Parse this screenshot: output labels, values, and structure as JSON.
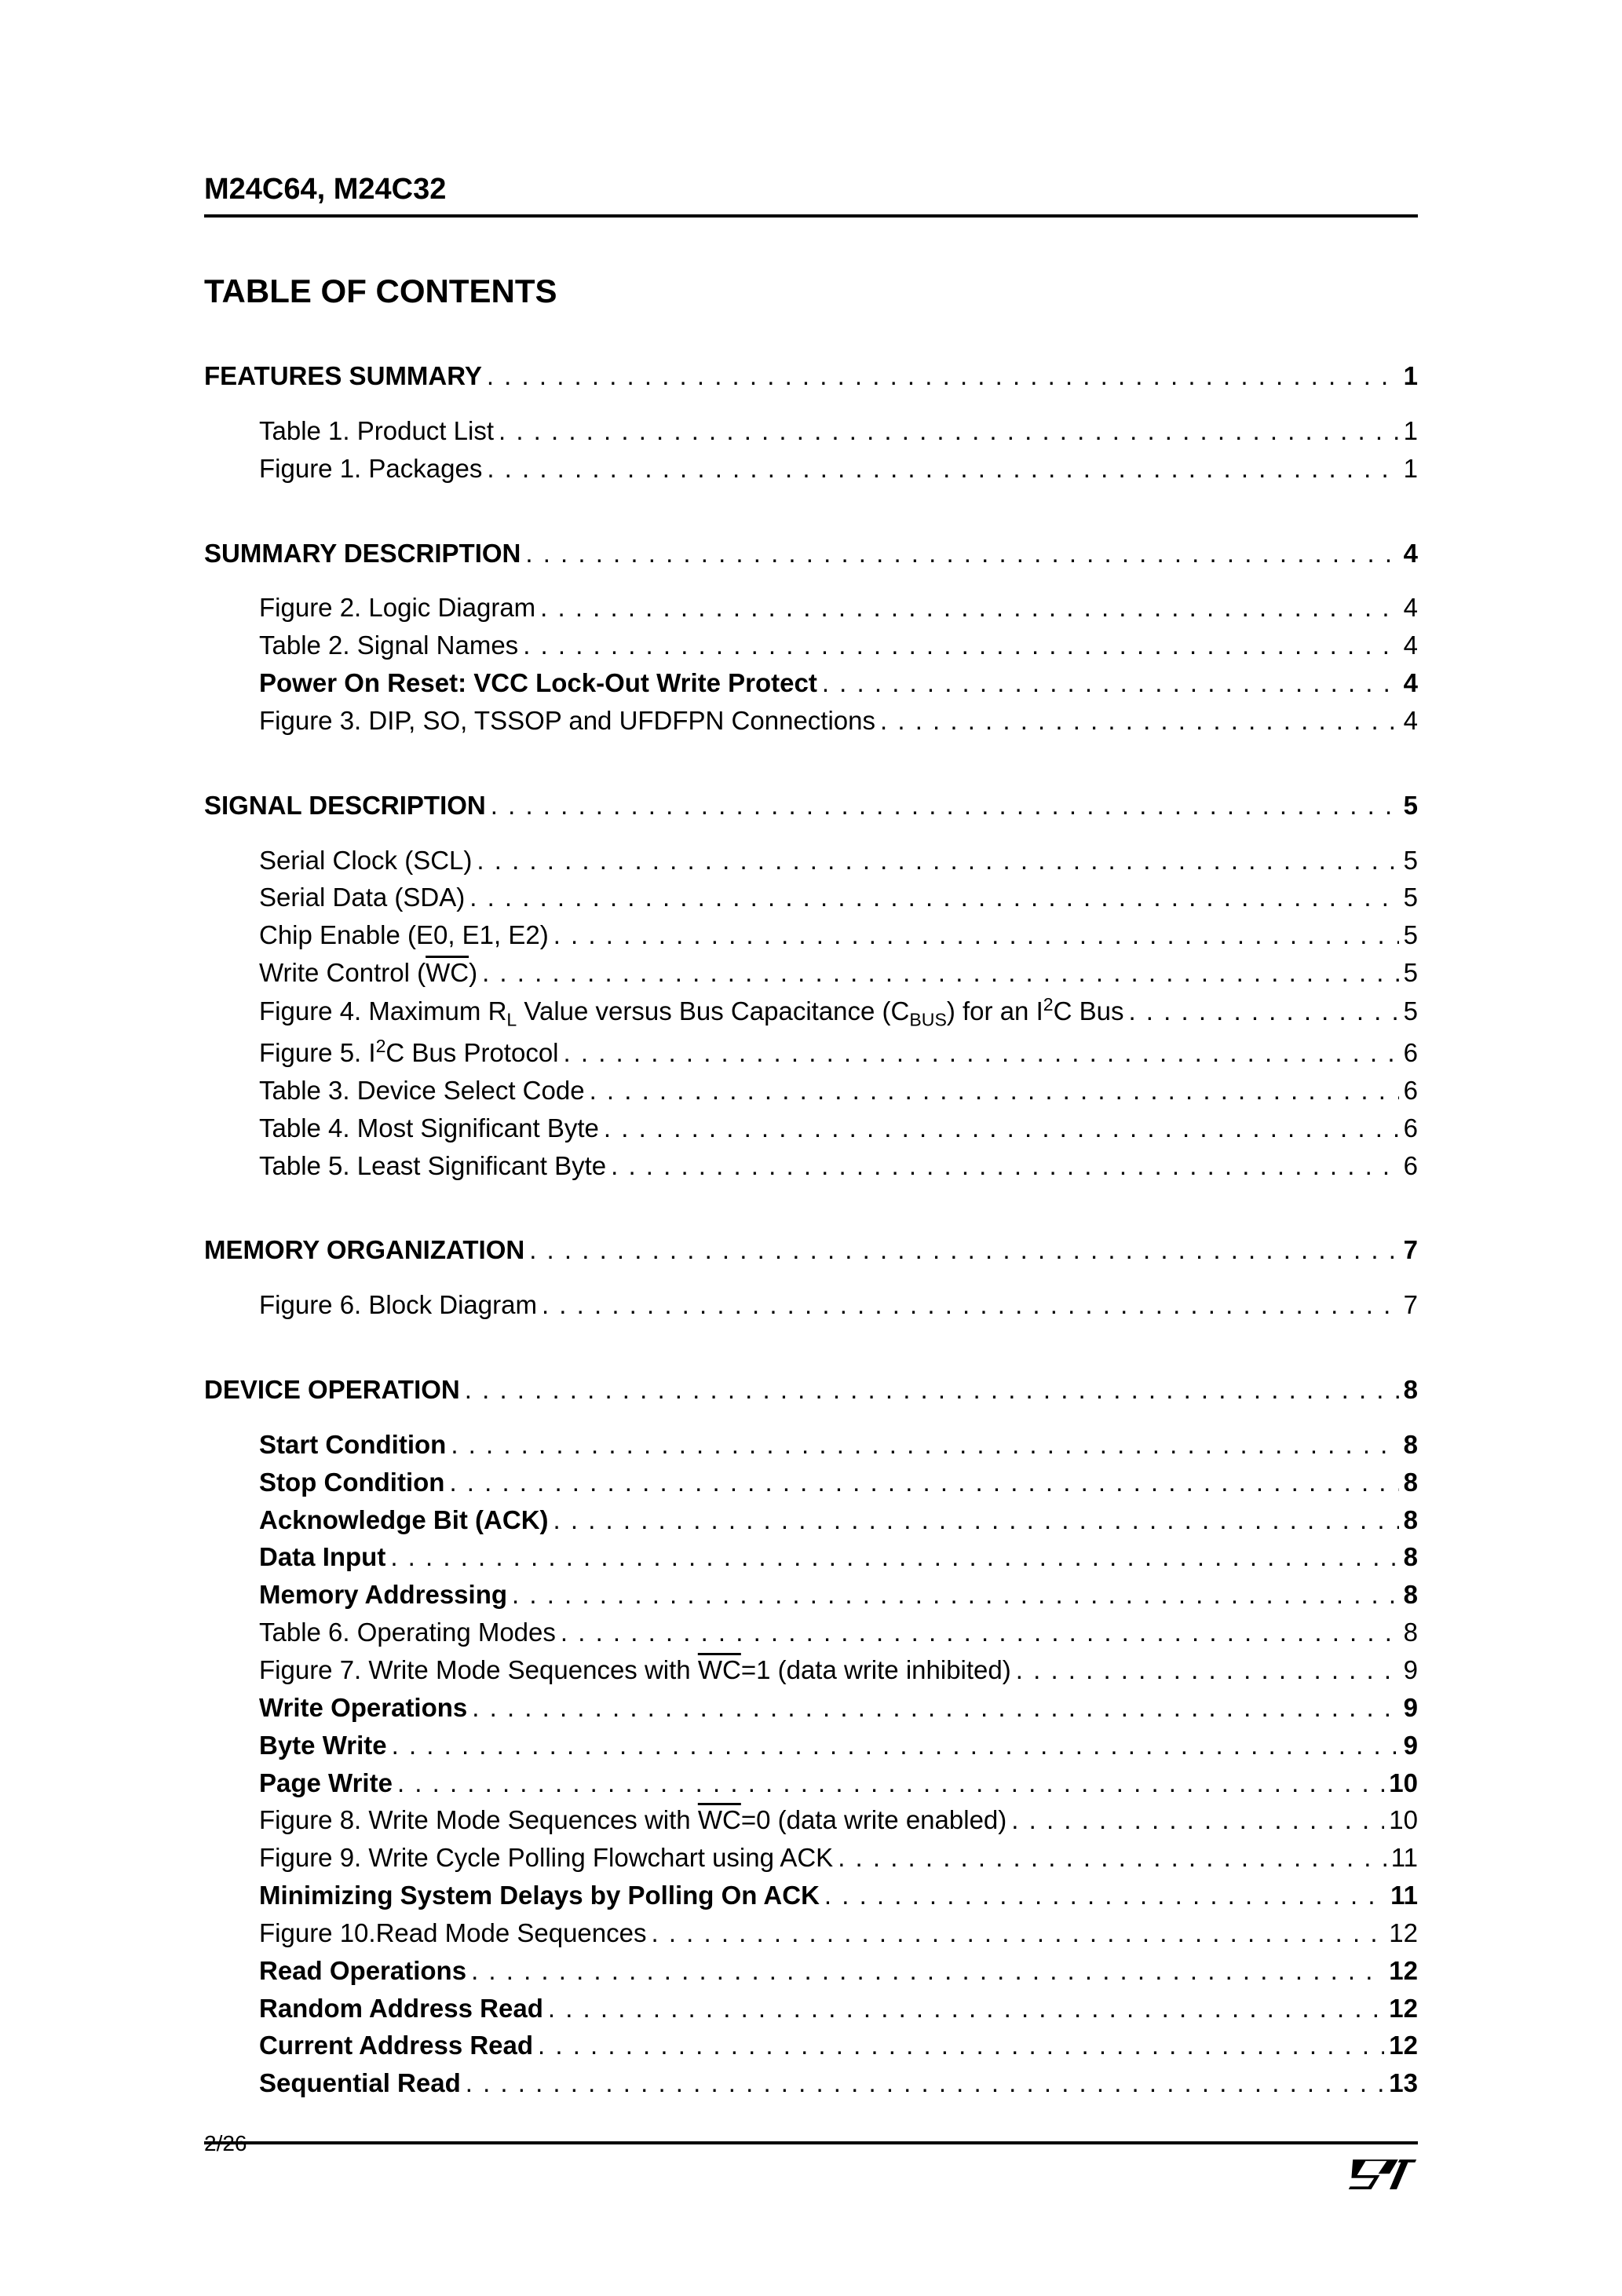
{
  "header": "M24C64, M24C32",
  "tocTitle": "TABLE OF CONTENTS",
  "footerPage": "2/26",
  "sections": [
    {
      "heading": {
        "label": "FEATURES SUMMARY",
        "page": "1"
      },
      "items": [
        {
          "label": "Table 1.   Product List",
          "page": "1"
        },
        {
          "label": "Figure 1. Packages",
          "page": "1"
        }
      ]
    },
    {
      "heading": {
        "label": "SUMMARY DESCRIPTION",
        "page": "4"
      },
      "items": [
        {
          "label": "Figure 2. Logic Diagram",
          "page": "4"
        },
        {
          "label": "Table 2.   Signal Names",
          "page": "4"
        },
        {
          "label": "Power On Reset: VCC Lock-Out Write Protect",
          "page": "4",
          "bold": true
        },
        {
          "label": "Figure 3. DIP, SO, TSSOP and UFDFPN Connections",
          "page": "4"
        }
      ]
    },
    {
      "heading": {
        "label": "SIGNAL DESCRIPTION",
        "page": "5"
      },
      "items": [
        {
          "label": "Serial Clock (SCL)",
          "page": "5"
        },
        {
          "label": "Serial Data (SDA)",
          "page": "5"
        },
        {
          "label": "Chip Enable (E0, E1, E2)",
          "page": "5"
        },
        {
          "labelHtml": "Write Control (<span class=\"overline\">WC</span>)",
          "page": "5"
        },
        {
          "labelHtml": "Figure 4. Maximum R<sub>L</sub> Value versus Bus Capacitance (C<sub>BUS</sub>) for an I<sup>2</sup>C Bus",
          "page": "5"
        },
        {
          "labelHtml": "Figure 5. I<sup>2</sup>C Bus Protocol",
          "page": "6"
        },
        {
          "label": "Table 3.   Device Select Code",
          "page": "6"
        },
        {
          "label": "Table 4.   Most Significant Byte",
          "page": "6"
        },
        {
          "label": "Table 5.   Least Significant Byte",
          "page": "6"
        }
      ]
    },
    {
      "heading": {
        "label": "MEMORY ORGANIZATION",
        "page": "7"
      },
      "items": [
        {
          "label": "Figure 6. Block Diagram",
          "page": "7"
        }
      ]
    },
    {
      "heading": {
        "label": "DEVICE OPERATION",
        "page": "8"
      },
      "items": [
        {
          "label": "Start Condition",
          "page": "8",
          "bold": true
        },
        {
          "label": "Stop Condition",
          "page": "8",
          "bold": true
        },
        {
          "label": "Acknowledge Bit (ACK)",
          "page": "8",
          "bold": true
        },
        {
          "label": "Data Input",
          "page": "8",
          "bold": true
        },
        {
          "label": "Memory Addressing",
          "page": "8",
          "bold": true
        },
        {
          "label": "Table 6.   Operating Modes",
          "page": "8"
        },
        {
          "labelHtml": "Figure 7. Write Mode Sequences with <span class=\"overline\">WC</span>=1 (data write inhibited)",
          "page": "9"
        },
        {
          "label": "Write Operations",
          "page": "9",
          "bold": true
        },
        {
          "label": "Byte Write",
          "page": "9",
          "bold": true
        },
        {
          "label": "Page Write",
          "page": "10",
          "bold": true
        },
        {
          "labelHtml": "Figure 8. Write Mode Sequences with <span class=\"overline\">WC</span>=0 (data write enabled)",
          "page": "10"
        },
        {
          "label": "Figure 9. Write Cycle Polling Flowchart using ACK",
          "page": "11"
        },
        {
          "label": "Minimizing System Delays by Polling On ACK",
          "page": "11",
          "bold": true
        },
        {
          "label": "Figure 10.Read Mode Sequences",
          "page": "12"
        },
        {
          "label": "Read Operations",
          "page": "12",
          "bold": true
        },
        {
          "label": "Random Address Read",
          "page": "12",
          "bold": true
        },
        {
          "label": "Current Address Read",
          "page": "12",
          "bold": true
        },
        {
          "label": "Sequential Read",
          "page": "13",
          "bold": true
        }
      ]
    }
  ]
}
